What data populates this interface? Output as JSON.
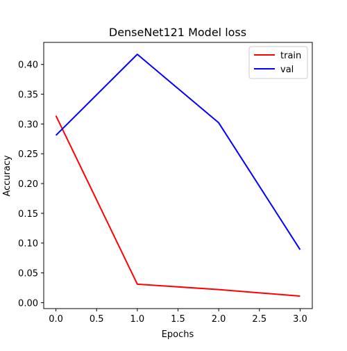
{
  "chart_data": {
    "type": "line",
    "title": "DenseNet121 Model loss",
    "xlabel": "Epochs",
    "ylabel": "Accuracy",
    "x": [
      0,
      1,
      2,
      3
    ],
    "xlim": [
      -0.15,
      3.15
    ],
    "ylim": [
      -0.01,
      0.437
    ],
    "xticks": [
      0.0,
      0.5,
      1.0,
      1.5,
      2.0,
      2.5,
      3.0
    ],
    "xtick_labels": [
      "0.0",
      "0.5",
      "1.0",
      "1.5",
      "2.0",
      "2.5",
      "3.0"
    ],
    "yticks": [
      0.0,
      0.05,
      0.1,
      0.15,
      0.2,
      0.25,
      0.3,
      0.35,
      0.4
    ],
    "ytick_labels": [
      "0.00",
      "0.05",
      "0.10",
      "0.15",
      "0.20",
      "0.25",
      "0.30",
      "0.35",
      "0.40"
    ],
    "grid": false,
    "legend_position": "top-right",
    "series": [
      {
        "name": "train",
        "color": "#ff0000",
        "values": [
          0.314,
          0.031,
          0.022,
          0.011
        ]
      },
      {
        "name": "val",
        "color": "#0000ff",
        "values": [
          0.281,
          0.417,
          0.302,
          0.089
        ]
      }
    ]
  }
}
